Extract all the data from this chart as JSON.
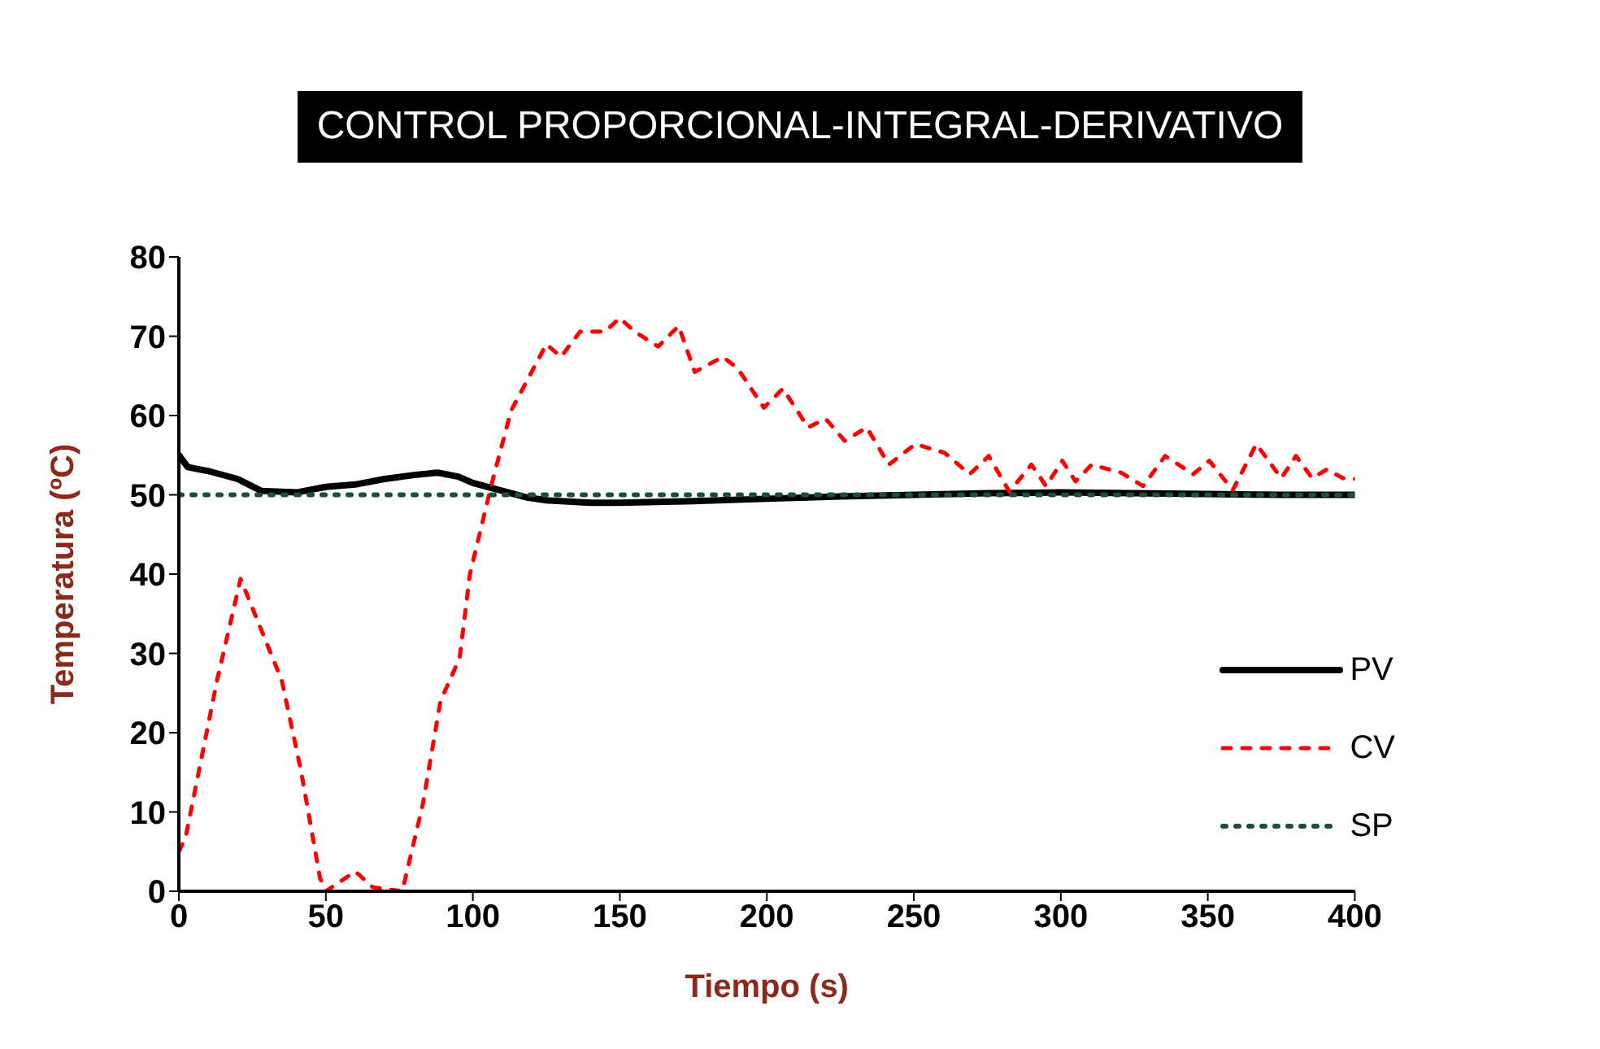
{
  "chart_data": {
    "type": "line",
    "title": "CONTROL PROPORCIONAL-INTEGRAL-DERIVATIVO",
    "xlabel": "Tiempo (s)",
    "ylabel": "Temperatura (ºC)",
    "xlim": [
      0,
      400
    ],
    "xticks": [
      0,
      50,
      100,
      150,
      200,
      250,
      300,
      350,
      400
    ],
    "ylim": [
      0,
      80
    ],
    "yticks": [
      0,
      10,
      20,
      30,
      40,
      50,
      60,
      70,
      80
    ],
    "legend": "right",
    "marker": "none",
    "series": [
      {
        "name": "PV",
        "color": "#000000",
        "line_style": "solid",
        "x": [
          0,
          3,
          10,
          20,
          28,
          40,
          50,
          60,
          70,
          80,
          88,
          95,
          100,
          110,
          118,
          125,
          140,
          150,
          175,
          200,
          225,
          250,
          275,
          300,
          325,
          350,
          375,
          400
        ],
        "values": [
          55,
          53.5,
          53,
          52,
          50.5,
          50.3,
          51,
          51.3,
          52,
          52.5,
          52.8,
          52.3,
          51.5,
          50.5,
          49.7,
          49.3,
          49,
          49,
          49.2,
          49.5,
          49.8,
          50,
          50.2,
          50.3,
          50.2,
          50.1,
          50,
          50
        ]
      },
      {
        "name": "CV",
        "color": "#ff0000",
        "line_style": "dashed",
        "x": [
          0,
          2.3,
          13,
          21,
          35,
          41.5,
          48,
          50,
          60,
          66,
          76,
          83,
          89,
          95.5,
          99,
          106.5,
          113,
          125,
          130,
          136.5,
          145,
          150,
          155,
          163,
          170,
          175.5,
          185,
          190,
          199,
          205.5,
          214,
          220,
          226.5,
          234,
          241.5,
          250.5,
          260.5,
          269,
          275.5,
          282.5,
          290,
          295,
          300.5,
          305,
          310.5,
          320.5,
          328,
          335.5,
          345,
          350.5,
          358.5,
          366.5,
          375,
          380,
          385.5,
          390.5,
          396,
          400
        ],
        "values": [
          5,
          6.8,
          26.6,
          39.4,
          26.6,
          15.3,
          1.7,
          0,
          2.5,
          0.5,
          0,
          11,
          24,
          29.4,
          40,
          51.5,
          60.6,
          69,
          67.4,
          70.6,
          70.6,
          72.3,
          70.6,
          68.7,
          71.3,
          65.5,
          67.4,
          66,
          61,
          63.4,
          58.5,
          59.6,
          56.8,
          58.5,
          53.8,
          56.4,
          55.3,
          52.6,
          54.9,
          50.4,
          53.8,
          51.1,
          54.3,
          51.7,
          53.8,
          52.8,
          51.1,
          54.9,
          52.6,
          54.3,
          50.6,
          56.4,
          52.1,
          54.9,
          52.1,
          53.2,
          52.1,
          52
        ]
      },
      {
        "name": "SP",
        "color": "#1f4f3a",
        "line_style": "dotted",
        "x": [
          0,
          400
        ],
        "values": [
          50,
          50
        ]
      }
    ]
  }
}
